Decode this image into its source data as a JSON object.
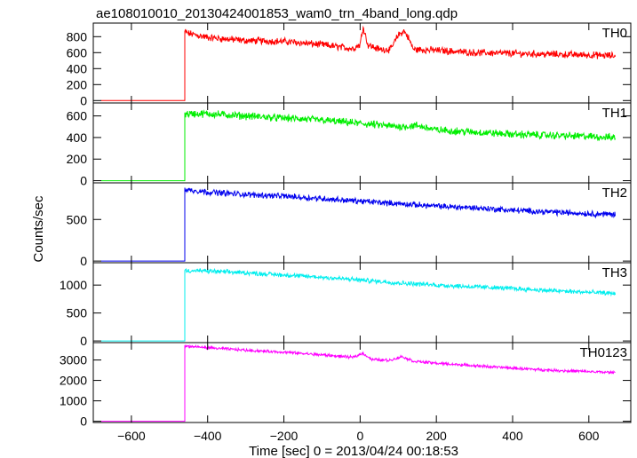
{
  "title": "ae108010010_20130424001853_wam0_trn_4band_long.qdp",
  "xlabel": "Time [sec] 0 = 2013/04/24 00:18:53",
  "ylabel": "Counts/sec",
  "chart_data": {
    "type": "line",
    "title": "ae108010010_20130424001853_wam0_trn_4band_long.qdp",
    "xlabel": "Time [sec] 0 = 2013/04/24 00:18:53",
    "ylabel": "Counts/sec",
    "xlim": [
      -700,
      710
    ],
    "x_ticks": [
      -600,
      -400,
      -200,
      0,
      200,
      400,
      600
    ],
    "x_range_data": [
      -680,
      670
    ],
    "onset_x": -460,
    "shared_x_axis": true,
    "grid": false,
    "series": [
      {
        "name": "TH0",
        "color": "#ff0000",
        "ylim": [
          -30,
          970
        ],
        "yticks": [
          0,
          200,
          400,
          600,
          800
        ],
        "pre_onset_level": 0,
        "x": [
          -460,
          -450,
          -400,
          -300,
          -200,
          -100,
          -20,
          0,
          8,
          20,
          50,
          80,
          100,
          115,
          125,
          140,
          200,
          300,
          400,
          500,
          600,
          670
        ],
        "values": [
          860,
          840,
          790,
          750,
          740,
          700,
          650,
          700,
          930,
          700,
          640,
          640,
          820,
          870,
          800,
          640,
          630,
          600,
          590,
          580,
          570,
          560
        ],
        "noise": 35
      },
      {
        "name": "TH1",
        "color": "#00ee00",
        "ylim": [
          -20,
          720
        ],
        "yticks": [
          0,
          200,
          400,
          600
        ],
        "pre_onset_level": 0,
        "x": [
          -460,
          -400,
          -300,
          -200,
          -100,
          0,
          100,
          150,
          200,
          300,
          400,
          500,
          600,
          670
        ],
        "values": [
          620,
          620,
          600,
          580,
          560,
          530,
          500,
          510,
          470,
          450,
          430,
          420,
          410,
          400
        ],
        "noise": 28
      },
      {
        "name": "TH2",
        "color": "#0000ee",
        "ylim": [
          -20,
          940
        ],
        "yticks": [
          0,
          500
        ],
        "pre_onset_level": 0,
        "x": [
          -460,
          -400,
          -300,
          -200,
          -100,
          0,
          100,
          200,
          300,
          400,
          500,
          600,
          670
        ],
        "values": [
          860,
          830,
          800,
          780,
          750,
          720,
          690,
          660,
          640,
          610,
          590,
          570,
          560
        ],
        "noise": 28
      },
      {
        "name": "TH3",
        "color": "#00eeee",
        "ylim": [
          -30,
          1400
        ],
        "yticks": [
          0,
          500,
          1000
        ],
        "pre_onset_level": 0,
        "x": [
          -460,
          -400,
          -300,
          -200,
          -100,
          0,
          100,
          200,
          300,
          400,
          500,
          600,
          670
        ],
        "values": [
          1260,
          1250,
          1220,
          1180,
          1140,
          1090,
          1040,
          1000,
          970,
          940,
          900,
          870,
          850
        ],
        "noise": 32
      },
      {
        "name": "TH0123",
        "color": "#ff00ff",
        "ylim": [
          -60,
          3850
        ],
        "yticks": [
          0,
          1000,
          2000,
          3000
        ],
        "pre_onset_level": 0,
        "x": [
          -460,
          -400,
          -300,
          -200,
          -100,
          -20,
          8,
          30,
          80,
          110,
          140,
          200,
          300,
          400,
          500,
          600,
          670
        ],
        "values": [
          3680,
          3600,
          3480,
          3380,
          3250,
          3130,
          3330,
          3020,
          2990,
          3170,
          2940,
          2840,
          2720,
          2600,
          2500,
          2430,
          2380
        ],
        "noise": 55
      }
    ]
  }
}
